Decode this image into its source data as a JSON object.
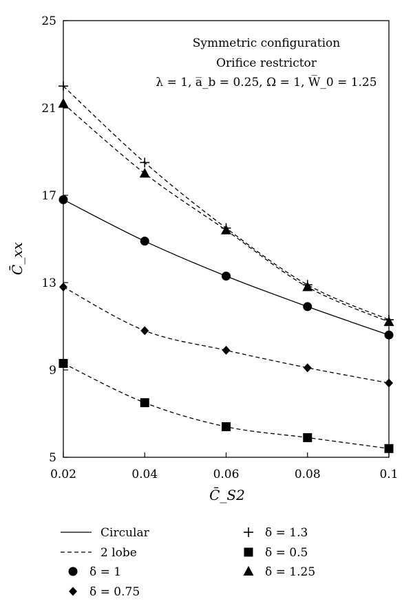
{
  "chart_data": {
    "type": "line",
    "xlabel": "C̄_S2",
    "ylabel": "C̄_xx",
    "xlim": [
      0.02,
      0.1
    ],
    "ylim": [
      5,
      25
    ],
    "x_ticks": [
      "0.02",
      "0.04",
      "0.06",
      "0.08",
      "0.1"
    ],
    "y_ticks": [
      "5",
      "9",
      "13",
      "17",
      "21",
      "25"
    ],
    "x_tick_values": [
      0.02,
      0.04,
      0.06,
      0.08,
      0.1
    ],
    "y_tick_values": [
      5,
      9,
      13,
      17,
      21,
      25
    ],
    "grid": false,
    "annotation_lines": [
      "Symmetric configuration",
      "Orifice restrictor",
      "λ = 1, a̅_b = 0.25, Ω = 1, W̅_0 = 1.25"
    ],
    "x": [
      0.02,
      0.04,
      0.06,
      0.08,
      0.1
    ],
    "series": [
      {
        "name": "δ = 1",
        "line": "Circular",
        "marker": "circle",
        "values": [
          16.8,
          14.9,
          13.3,
          11.9,
          10.6
        ]
      },
      {
        "name": "δ = 1.3",
        "line": "2 lobe",
        "marker": "plus",
        "values": [
          22.0,
          18.5,
          15.5,
          12.9,
          11.3
        ]
      },
      {
        "name": "δ = 1.25",
        "line": "2 lobe",
        "marker": "triangle",
        "values": [
          21.2,
          18.0,
          15.4,
          12.8,
          11.2
        ]
      },
      {
        "name": "δ = 0.75",
        "line": "2 lobe",
        "marker": "diamond",
        "values": [
          12.8,
          10.8,
          9.9,
          9.1,
          8.4
        ]
      },
      {
        "name": "δ = 0.5",
        "line": "2 lobe",
        "marker": "square",
        "values": [
          9.3,
          7.5,
          6.4,
          5.9,
          5.4
        ]
      }
    ],
    "legend": {
      "placement": "bottom",
      "lines": [
        {
          "label": "Circular",
          "style": "solid"
        },
        {
          "label": "2 lobe",
          "style": "dashed"
        }
      ],
      "markers": [
        {
          "label": "δ = 1",
          "marker": "circle"
        },
        {
          "label": "δ = 0.75",
          "marker": "diamond"
        },
        {
          "label": "δ = 1.3",
          "marker": "plus"
        },
        {
          "label": "δ = 0.5",
          "marker": "square"
        },
        {
          "label": "δ = 1.25",
          "marker": "triangle"
        }
      ]
    }
  }
}
